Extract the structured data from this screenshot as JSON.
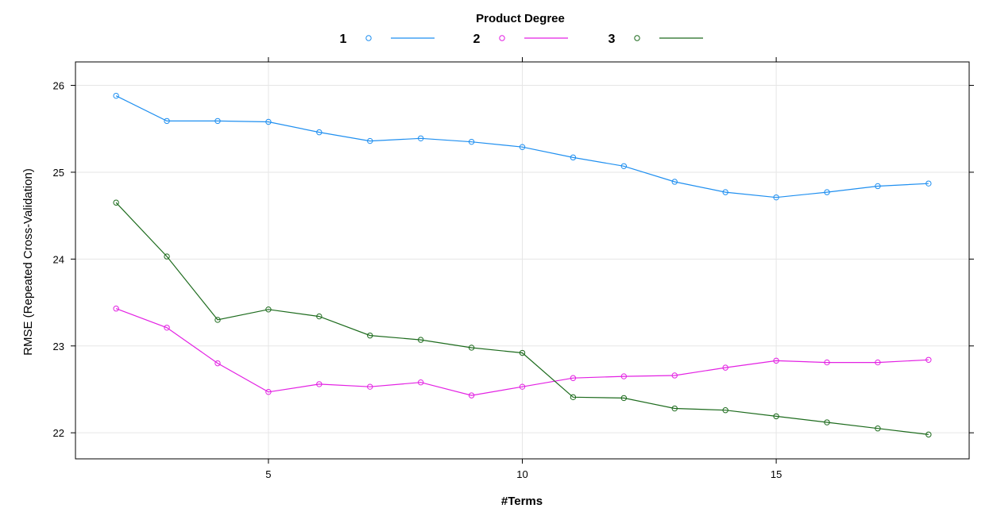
{
  "chart_data": {
    "type": "line",
    "title": "",
    "xlabel": "#Terms",
    "ylabel": "RMSE (Repeated Cross-Validation)",
    "xlim": [
      1.2,
      18.8
    ],
    "ylim": [
      21.7,
      26.27
    ],
    "x_ticks": [
      5,
      10,
      15
    ],
    "y_ticks": [
      22,
      23,
      24,
      25,
      26
    ],
    "grid": true,
    "legend": {
      "title": "Product Degree",
      "placement": "top",
      "entries": [
        "1",
        "2",
        "3"
      ]
    },
    "x": [
      2,
      3,
      4,
      5,
      6,
      7,
      8,
      9,
      10,
      11,
      12,
      13,
      14,
      15,
      16,
      17,
      18
    ],
    "series": [
      {
        "name": "1",
        "color": "#1f8ff0",
        "values": [
          25.88,
          25.59,
          25.59,
          25.58,
          25.46,
          25.36,
          25.39,
          25.35,
          25.29,
          25.17,
          25.07,
          24.89,
          24.77,
          24.71,
          24.77,
          24.84,
          24.87
        ]
      },
      {
        "name": "2",
        "color": "#e321e3",
        "values": [
          23.43,
          23.21,
          22.8,
          22.47,
          22.56,
          22.53,
          22.58,
          22.43,
          22.53,
          22.63,
          22.65,
          22.66,
          22.75,
          22.83,
          22.81,
          22.81,
          22.84
        ]
      },
      {
        "name": "3",
        "color": "#1d6b1d",
        "values": [
          24.65,
          24.03,
          23.3,
          23.42,
          23.34,
          23.12,
          23.07,
          22.98,
          22.92,
          22.41,
          22.4,
          22.28,
          22.26,
          22.19,
          22.12,
          22.05,
          21.98
        ]
      }
    ]
  }
}
